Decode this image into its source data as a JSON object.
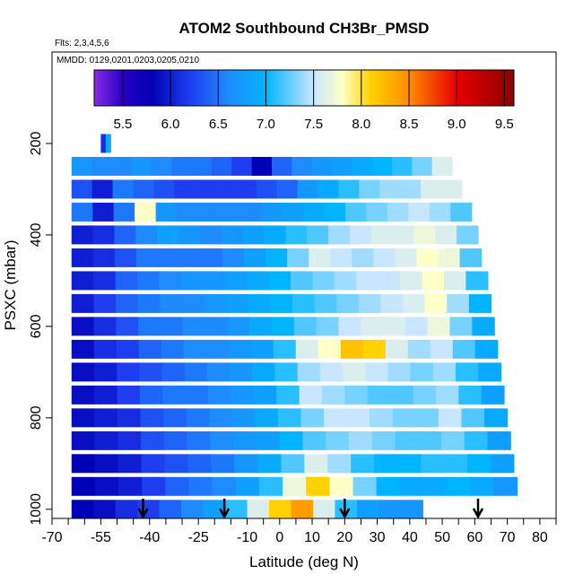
{
  "chart_data": {
    "type": "heatmap",
    "title": "ATOM2 Southbound CH3Br_PMSD",
    "subtitle_flights": "Flts: 2,3,4,5,6",
    "subtitle_dates": "MMDD: 0129,0201,0203,0205,0210",
    "xlabel": "Latitude (deg N)",
    "ylabel": "PSXC (mbar)",
    "xlim": [
      -70,
      85
    ],
    "ylim": [
      1020,
      0
    ],
    "x_ticks_labeled": [
      -70,
      -55,
      -40,
      -25,
      -10,
      0,
      10,
      20,
      30,
      40,
      50,
      60,
      70,
      80
    ],
    "x_tick_labels": [
      "-70",
      "-55",
      "-40",
      "-25",
      "-10",
      "0",
      "10",
      "20",
      "30",
      "40",
      "50",
      "60",
      "70",
      "80"
    ],
    "y_ticks": [
      200,
      400,
      600,
      800,
      1000
    ],
    "y_tick_labels": [
      "200",
      "400",
      "600",
      "800",
      "1000"
    ],
    "colorbar": {
      "min": 5.2,
      "max": 9.6,
      "ticks": [
        5.5,
        6.0,
        6.5,
        7.0,
        7.5,
        8.0,
        8.5,
        9.0,
        9.5
      ],
      "tick_labels": [
        "5.5",
        "6.0",
        "6.5",
        "7.0",
        "7.5",
        "8.0",
        "8.5",
        "9.0",
        "9.5"
      ],
      "stops": [
        {
          "v": 5.2,
          "color": "#8a2be2"
        },
        {
          "v": 5.5,
          "color": "#2800c8"
        },
        {
          "v": 5.8,
          "color": "#0000b4"
        },
        {
          "v": 6.2,
          "color": "#1e3cf0"
        },
        {
          "v": 6.6,
          "color": "#1e8cff"
        },
        {
          "v": 7.0,
          "color": "#00b4ff"
        },
        {
          "v": 7.5,
          "color": "#c8e6ff"
        },
        {
          "v": 7.8,
          "color": "#ffffc8"
        },
        {
          "v": 8.1,
          "color": "#ffd200"
        },
        {
          "v": 8.5,
          "color": "#ff8c00"
        },
        {
          "v": 9.0,
          "color": "#e60000"
        },
        {
          "v": 9.6,
          "color": "#8b0000"
        }
      ]
    },
    "arrow_latitudes": [
      -42,
      -17,
      20,
      61
    ],
    "rows": [
      {
        "p": 200,
        "lat": [
          -55,
          -52
        ],
        "values": [
          6.1,
          6.9
        ]
      },
      {
        "p": 250,
        "lat": [
          -64,
          53
        ],
        "values": [
          6.7,
          6.6,
          6.6,
          6.7,
          6.6,
          6.5,
          6.5,
          6.4,
          6.2,
          5.8,
          6.4,
          6.6,
          6.7,
          6.8,
          6.9,
          7.0,
          7.1,
          7.3,
          7.6
        ]
      },
      {
        "p": 300,
        "lat": [
          -64,
          56
        ],
        "values": [
          6.3,
          6.0,
          6.5,
          6.4,
          6.3,
          6.2,
          6.2,
          6.2,
          6.2,
          6.3,
          6.4,
          6.7,
          6.9,
          7.1,
          7.3,
          7.4,
          7.4,
          7.6,
          7.6
        ]
      },
      {
        "p": 350,
        "lat": [
          -64,
          59
        ],
        "values": [
          6.5,
          6.0,
          6.5,
          7.8,
          6.7,
          6.6,
          6.6,
          6.6,
          6.6,
          6.7,
          6.8,
          6.9,
          7.0,
          7.2,
          7.3,
          7.4,
          7.5,
          7.4,
          7.2
        ]
      },
      {
        "p": 400,
        "lat": [
          -64,
          61
        ],
        "values": [
          6.0,
          6.1,
          6.4,
          6.6,
          6.8,
          6.7,
          6.6,
          6.7,
          6.8,
          6.9,
          7.1,
          7.2,
          7.4,
          7.5,
          7.6,
          7.6,
          7.7,
          7.6,
          7.3
        ]
      },
      {
        "p": 450,
        "lat": [
          -64,
          62
        ],
        "values": [
          6.0,
          6.1,
          6.3,
          6.5,
          6.5,
          6.5,
          6.5,
          6.6,
          6.8,
          7.0,
          7.3,
          7.6,
          7.5,
          7.4,
          7.5,
          7.6,
          7.8,
          7.7,
          7.2
        ]
      },
      {
        "p": 500,
        "lat": [
          -64,
          64
        ],
        "values": [
          6.0,
          6.1,
          6.4,
          6.5,
          6.6,
          6.7,
          6.7,
          6.8,
          6.9,
          7.0,
          7.2,
          7.3,
          7.4,
          7.5,
          7.5,
          7.6,
          7.8,
          7.6,
          7.1
        ]
      },
      {
        "p": 550,
        "lat": [
          -64,
          65
        ],
        "values": [
          6.0,
          6.2,
          6.4,
          6.5,
          6.6,
          6.6,
          6.7,
          6.8,
          6.9,
          7.0,
          7.1,
          7.2,
          7.3,
          7.4,
          7.5,
          7.6,
          7.8,
          7.4,
          7.0
        ]
      },
      {
        "p": 600,
        "lat": [
          -64,
          66
        ],
        "values": [
          5.9,
          6.1,
          6.3,
          6.5,
          6.5,
          6.6,
          6.6,
          6.7,
          6.9,
          7.0,
          7.2,
          7.3,
          7.5,
          7.6,
          7.6,
          7.5,
          7.7,
          7.3,
          6.9
        ]
      },
      {
        "p": 650,
        "lat": [
          -64,
          67
        ],
        "values": [
          5.9,
          6.1,
          6.2,
          6.4,
          6.5,
          6.6,
          6.6,
          6.7,
          6.8,
          7.1,
          7.6,
          7.8,
          8.2,
          8.1,
          7.6,
          7.4,
          7.5,
          7.2,
          6.9
        ]
      },
      {
        "p": 700,
        "lat": [
          -64,
          68
        ],
        "values": [
          5.9,
          6.0,
          6.2,
          6.3,
          6.4,
          6.5,
          6.6,
          6.7,
          6.9,
          7.1,
          7.4,
          7.5,
          7.6,
          7.5,
          7.4,
          7.3,
          7.4,
          7.1,
          6.9
        ]
      },
      {
        "p": 750,
        "lat": [
          -64,
          69
        ],
        "values": [
          5.9,
          6.0,
          6.2,
          6.4,
          6.5,
          6.5,
          6.6,
          6.7,
          6.8,
          7.1,
          7.5,
          7.4,
          7.3,
          7.2,
          7.2,
          7.3,
          7.4,
          7.1,
          6.8
        ]
      },
      {
        "p": 800,
        "lat": [
          -64,
          70
        ],
        "values": [
          5.9,
          6.0,
          6.1,
          6.3,
          6.4,
          6.5,
          6.6,
          6.7,
          6.9,
          7.1,
          7.3,
          7.5,
          7.5,
          7.4,
          7.3,
          7.3,
          7.5,
          7.2,
          6.9
        ]
      },
      {
        "p": 850,
        "lat": [
          -64,
          71
        ],
        "values": [
          5.9,
          6.0,
          6.1,
          6.3,
          6.4,
          6.5,
          6.6,
          6.7,
          6.8,
          7.0,
          7.2,
          7.3,
          7.4,
          7.3,
          7.2,
          7.2,
          7.3,
          7.1,
          6.8
        ]
      },
      {
        "p": 900,
        "lat": [
          -64,
          72
        ],
        "values": [
          5.8,
          5.9,
          6.0,
          6.2,
          6.3,
          6.4,
          6.5,
          6.7,
          6.9,
          7.2,
          7.6,
          7.4,
          7.1,
          7.0,
          7.0,
          7.1,
          7.1,
          7.0,
          6.8
        ]
      },
      {
        "p": 950,
        "lat": [
          -64,
          73
        ],
        "values": [
          5.8,
          5.9,
          6.0,
          6.2,
          6.4,
          6.5,
          6.6,
          6.8,
          7.1,
          7.7,
          8.1,
          7.8,
          7.3,
          7.0,
          6.9,
          6.9,
          7.0,
          6.9,
          6.7
        ]
      },
      {
        "p": 1000,
        "lat": [
          -64,
          44
        ],
        "values": [
          5.8,
          5.9,
          6.1,
          6.2,
          6.4,
          6.6,
          6.8,
          7.1,
          7.6,
          8.1,
          8.4,
          7.6,
          7.1,
          6.8,
          6.7,
          6.7
        ]
      }
    ]
  }
}
